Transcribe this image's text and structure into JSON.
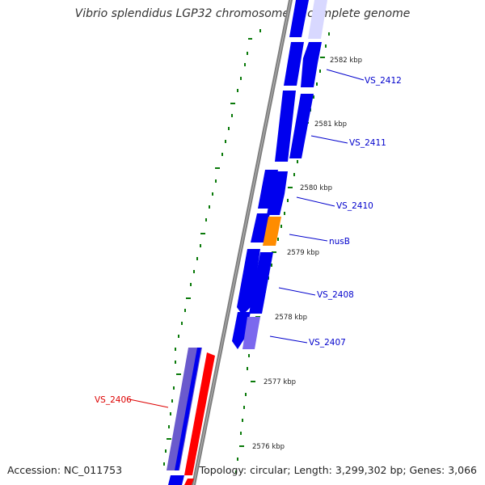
{
  "title": "Vibrio splendidus LGP32 chromosome 1, complete genome",
  "accession": "Accession: NC_011753",
  "topology": "Topology: circular; Length: 3,299,302 bp; Genes: 3,066",
  "colors": {
    "backbone": "#8c8c8c",
    "gene_blue": "#0000ee",
    "gene_red": "#ff0000",
    "gene_orange": "#ff8c00",
    "gene_purple": "#6a5acd",
    "gene_faded": "#d8d8ff",
    "tick": "#0a7a0a",
    "label_blue": "#0000cc",
    "label_red": "#dd0000"
  },
  "scale_ticks": [
    {
      "label": "2582 kbp",
      "kbp": 2582
    },
    {
      "label": "2581 kbp",
      "kbp": 2581
    },
    {
      "label": "2580 kbp",
      "kbp": 2580
    },
    {
      "label": "2579 kbp",
      "kbp": 2579
    },
    {
      "label": "2578 kbp",
      "kbp": 2578
    },
    {
      "label": "2577 kbp",
      "kbp": 2577
    },
    {
      "label": "2576 kbp",
      "kbp": 2576
    }
  ],
  "gene_labels": [
    {
      "name": "VS_2412",
      "strand": "plus"
    },
    {
      "name": "VS_2411",
      "strand": "plus"
    },
    {
      "name": "VS_2410",
      "strand": "plus"
    },
    {
      "name": "nusB",
      "strand": "plus"
    },
    {
      "name": "VS_2408",
      "strand": "plus"
    },
    {
      "name": "VS_2407",
      "strand": "plus"
    },
    {
      "name": "VS_2406",
      "strand": "minus"
    }
  ]
}
